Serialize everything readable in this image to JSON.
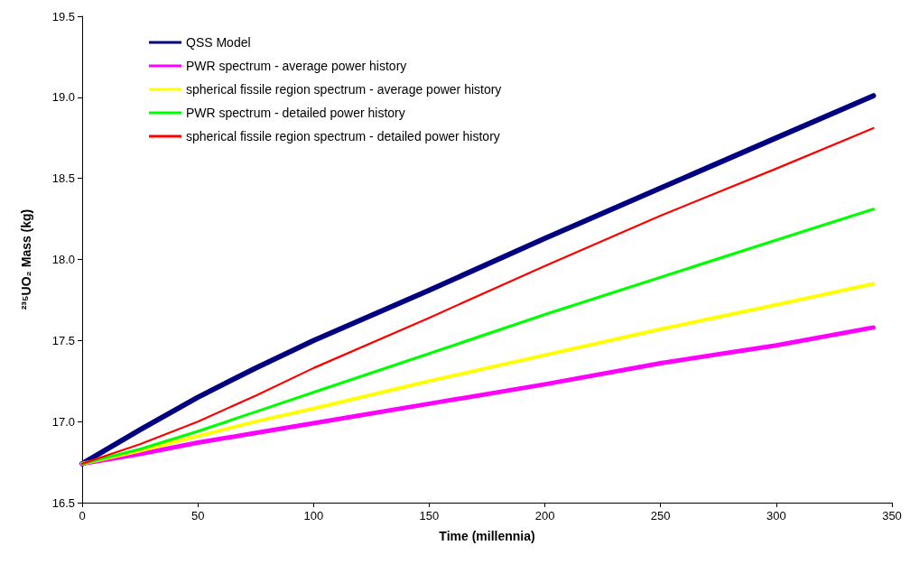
{
  "chart_data": {
    "type": "line",
    "xlabel": "Time (millennia)",
    "ylabel": "²³⁵UO₂ Mass (kg)",
    "x": [
      0,
      25,
      50,
      75,
      100,
      150,
      200,
      250,
      300,
      342
    ],
    "series": [
      {
        "name": "QSS Model",
        "color": "#000080",
        "values": [
          16.74,
          16.95,
          17.15,
          17.33,
          17.5,
          17.81,
          18.13,
          18.44,
          18.75,
          19.01
        ]
      },
      {
        "name": "PWR spectrum - average power history",
        "color": "#ff00ff",
        "values": [
          16.74,
          16.8,
          16.87,
          16.93,
          16.99,
          17.11,
          17.23,
          17.36,
          17.47,
          17.58
        ]
      },
      {
        "name": "spherical fissile region spectrum - average power history",
        "color": "#ffff00",
        "values": [
          16.74,
          16.82,
          16.91,
          17.0,
          17.08,
          17.25,
          17.41,
          17.57,
          17.72,
          17.85
        ]
      },
      {
        "name": "PWR spectrum - detailed power history",
        "color": "#00ff00",
        "values": [
          16.74,
          16.83,
          16.94,
          17.06,
          17.18,
          17.42,
          17.66,
          17.89,
          18.12,
          18.31
        ]
      },
      {
        "name": "spherical fissile region spectrum - detailed power history",
        "color": "#ff0000",
        "values": [
          16.74,
          16.86,
          17.0,
          17.16,
          17.33,
          17.64,
          17.96,
          18.27,
          18.56,
          18.81
        ]
      }
    ],
    "xlim": [
      0,
      350
    ],
    "xticks": [
      0,
      50,
      100,
      150,
      200,
      250,
      300,
      350
    ],
    "ylim": [
      16.5,
      19.5
    ],
    "yticks": [
      16.5,
      {
        "value": 17,
        "label": "17.0"
      },
      17.5,
      {
        "value": 18,
        "label": "18.0"
      },
      18.5,
      {
        "value": 19,
        "label": "19.0"
      },
      19.5
    ],
    "grid": false,
    "legend": "top left",
    "marker": "none",
    "line_style": "solid"
  }
}
